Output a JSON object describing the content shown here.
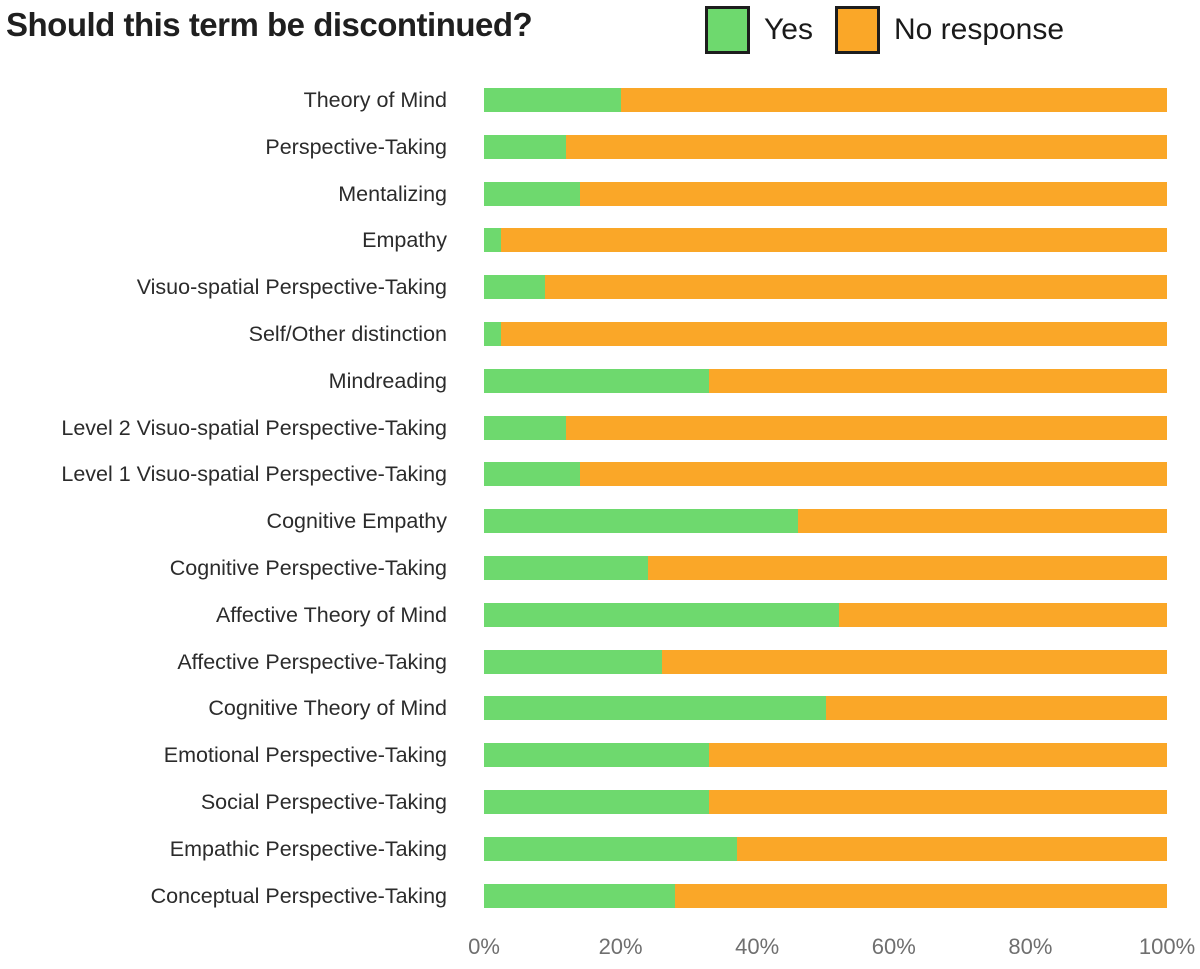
{
  "title": "Should this term be discontinued?",
  "colors": {
    "yes": "#6ED96E",
    "no": "#FAA728",
    "legend_border": "#1d1d1d",
    "title_text": "#1f1f1f",
    "label_text": "#2b2b2b",
    "axis_text": "#6f6f6f"
  },
  "legend": {
    "position": "top-right",
    "items": [
      {
        "label": "Yes",
        "color": "#6ED96E"
      },
      {
        "label": "No response",
        "color": "#FAA728"
      }
    ]
  },
  "axis": {
    "tick_labels": [
      "0%",
      "20%",
      "40%",
      "60%",
      "80%",
      "100%"
    ],
    "tick_positions": [
      0,
      20,
      40,
      60,
      80,
      100
    ]
  },
  "chart_data": {
    "type": "bar",
    "orientation": "horizontal",
    "stacked": true,
    "title": "Should this term be discontinued?",
    "xlabel": "",
    "ylabel": "",
    "xlim": [
      0,
      100
    ],
    "grid": false,
    "legend_position": "top-right",
    "categories": [
      "Theory of Mind",
      "Perspective-Taking",
      "Mentalizing",
      "Empathy",
      "Visuo-spatial Perspective-Taking",
      "Self/Other distinction",
      "Mindreading",
      "Level 2 Visuo-spatial Perspective-Taking",
      "Level 1 Visuo-spatial Perspective-Taking",
      "Cognitive Empathy",
      "Cognitive Perspective-Taking",
      "Affective Theory of Mind",
      "Affective Perspective-Taking",
      "Cognitive Theory of Mind",
      "Emotional Perspective-Taking",
      "Social Perspective-Taking",
      "Empathic Perspective-Taking",
      "Conceptual Perspective-Taking"
    ],
    "series": [
      {
        "name": "Yes",
        "color": "#6ED96E",
        "values": [
          20,
          12,
          14,
          2.5,
          9,
          2.5,
          33,
          12,
          14,
          46,
          24,
          52,
          26,
          50,
          33,
          33,
          37,
          28
        ]
      },
      {
        "name": "No response",
        "color": "#FAA728",
        "values": [
          80,
          88,
          86,
          97.5,
          91,
          97.5,
          67,
          88,
          86,
          54,
          76,
          48,
          74,
          50,
          67,
          67,
          63,
          72
        ]
      }
    ]
  }
}
